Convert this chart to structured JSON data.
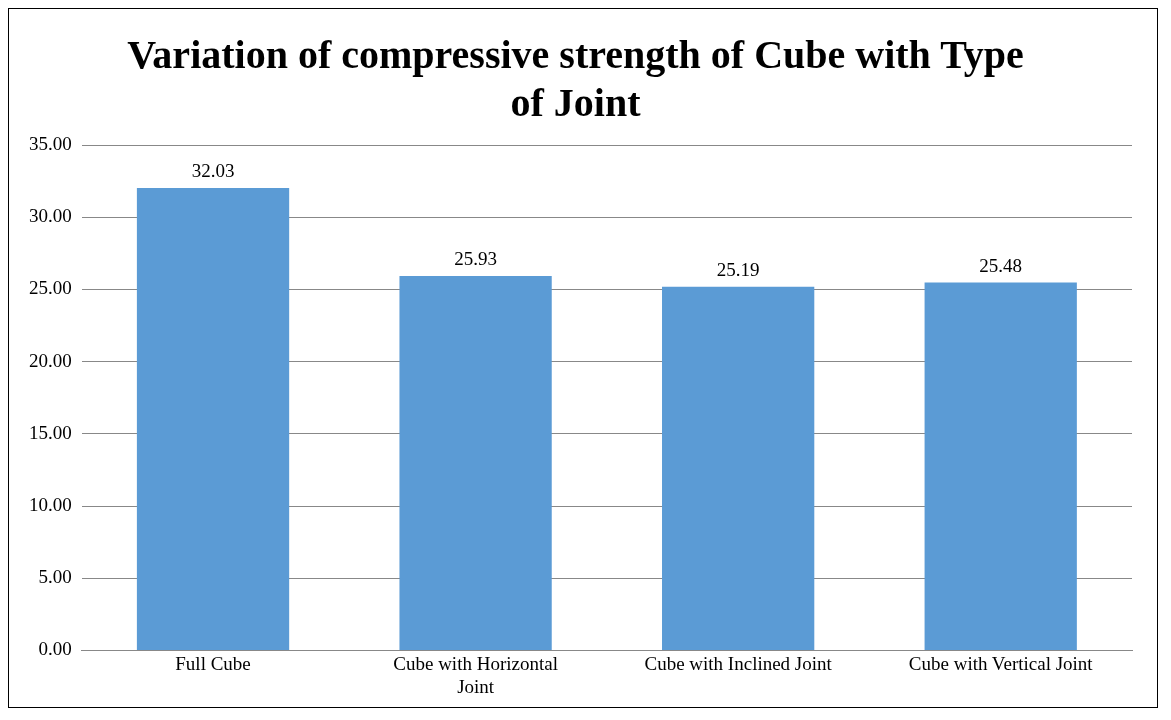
{
  "chart_data": {
    "type": "bar",
    "title": "Variation of compressive strength of Cube with Type of Joint",
    "categories": [
      "Full Cube",
      "Cube with Horizontal Joint",
      "Cube with Inclined Joint",
      "Cube with Vertical Joint"
    ],
    "values": [
      32.03,
      25.93,
      25.19,
      25.48
    ],
    "color": "#5b9bd5",
    "ylim": [
      0,
      35
    ],
    "yticks": [
      {
        "value": 0,
        "label": "0.00"
      },
      {
        "value": 5,
        "label": "5.00"
      },
      {
        "value": 10,
        "label": "10.00"
      },
      {
        "value": 15,
        "label": "15.00"
      },
      {
        "value": 20,
        "label": "20.00"
      },
      {
        "value": 25,
        "label": "25.00"
      },
      {
        "value": 30,
        "label": "30.00"
      },
      {
        "value": 35,
        "label": "35.00"
      }
    ],
    "grid": "y",
    "data_labels": true
  }
}
